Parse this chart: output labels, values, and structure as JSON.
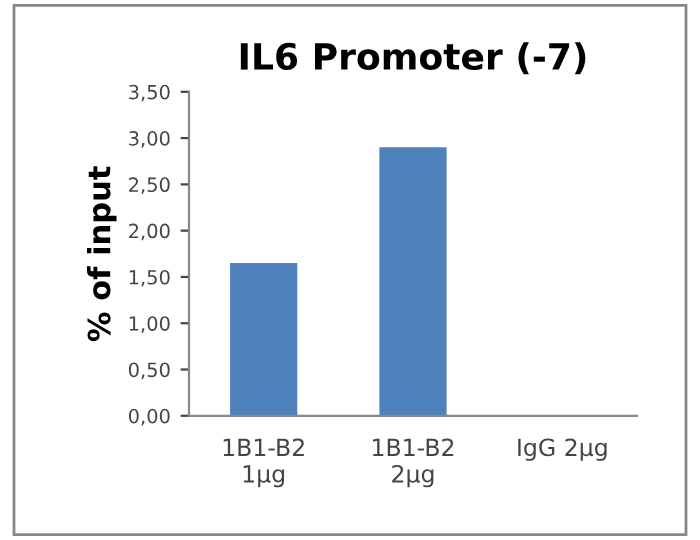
{
  "chart_data": {
    "type": "bar",
    "title": "IL6 Promoter (-7)",
    "ylabel": "% of input",
    "categories": [
      "1B1-B2\n1μg",
      "1B1-B2\n2μg",
      "IgG 2μg"
    ],
    "values": [
      1.65,
      2.9,
      0
    ],
    "color": "#4f81bd",
    "ylim": [
      0,
      3.5
    ],
    "yticks": [
      {
        "value": 0,
        "label": "0,00"
      },
      {
        "value": 0.5,
        "label": "0,50"
      },
      {
        "value": 1,
        "label": "1,00"
      },
      {
        "value": 1.5,
        "label": "1,50"
      },
      {
        "value": 2,
        "label": "2,00"
      },
      {
        "value": 2.5,
        "label": "2,50"
      },
      {
        "value": 3,
        "label": "3,00"
      },
      {
        "value": 3.5,
        "label": "3,50"
      }
    ],
    "grid": false
  }
}
